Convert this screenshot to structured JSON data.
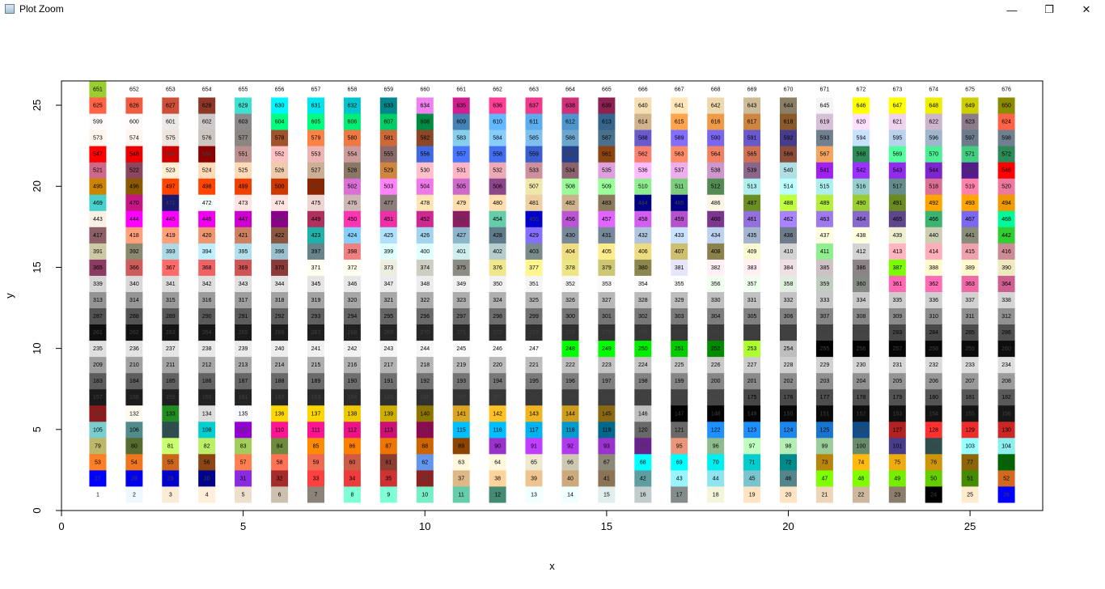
{
  "window": {
    "title": "Plot Zoom",
    "minimize_glyph": "—",
    "maximize_glyph": "❐",
    "close_glyph": "✕"
  },
  "chart_data": {
    "type": "scatter",
    "title": "",
    "xlabel": "x",
    "ylabel": "y",
    "xlim": [
      0,
      27
    ],
    "ylim": [
      0,
      26.5
    ],
    "x_ticks": [
      0,
      5,
      10,
      15,
      20,
      25
    ],
    "y_ticks": [
      0,
      5,
      10,
      15,
      20,
      25
    ],
    "grid": false,
    "marker": "square",
    "layout_rule": "point n is drawn at x = ((n-1) mod 26) + 1, y = floor((n-1)/26) + 1, filled with R colors()[n] and labelled with n",
    "labels": [
      1,
      2,
      3,
      4,
      5,
      6,
      7,
      8,
      9,
      10,
      11,
      12,
      13,
      14,
      15,
      16,
      17,
      18,
      19,
      20,
      21,
      22,
      23,
      24,
      25,
      26,
      27,
      28,
      29,
      30,
      31,
      32,
      33,
      34,
      35,
      36,
      37,
      38,
      39,
      40,
      41,
      42,
      43,
      44,
      45,
      46,
      47,
      48,
      49,
      50,
      51,
      52,
      53,
      54,
      55,
      56,
      57,
      58,
      59,
      60,
      61,
      62,
      63,
      64,
      65,
      66,
      67,
      68,
      69,
      70,
      71,
      72,
      73,
      74,
      75,
      76,
      77,
      78,
      79,
      80,
      81,
      82,
      83,
      84,
      85,
      86,
      87,
      88,
      89,
      90,
      91,
      92,
      93,
      94,
      95,
      96,
      97,
      98,
      99,
      100,
      101,
      102,
      103,
      104,
      105,
      106,
      107,
      108,
      109,
      110,
      111,
      112,
      113,
      114,
      115,
      116,
      117,
      118,
      119,
      120,
      121,
      122,
      123,
      124,
      125,
      126,
      127,
      128,
      129,
      130,
      131,
      132,
      133,
      134,
      135,
      136,
      137,
      138,
      139,
      140,
      141,
      142,
      143,
      144,
      145,
      146,
      147,
      148,
      149,
      150,
      151,
      152,
      153,
      154,
      155,
      156,
      157,
      158,
      159,
      160,
      161,
      162,
      163,
      164,
      165,
      166,
      167,
      168,
      169,
      170,
      171,
      172,
      173,
      174,
      175,
      176,
      177,
      178,
      179,
      180,
      181,
      182,
      183,
      184,
      185,
      186,
      187,
      188,
      189,
      190,
      191,
      192,
      193,
      194,
      195,
      196,
      197,
      198,
      199,
      200,
      201,
      202,
      203,
      204,
      205,
      206,
      207,
      208,
      209,
      210,
      211,
      212,
      213,
      214,
      215,
      216,
      217,
      218,
      219,
      220,
      221,
      222,
      223,
      224,
      225,
      226,
      227,
      228,
      229,
      230,
      231,
      232,
      233,
      234,
      235,
      236,
      237,
      238,
      239,
      240,
      241,
      242,
      243,
      244,
      245,
      246,
      247,
      248,
      249,
      250,
      251,
      252,
      253,
      254,
      255,
      256,
      257,
      258,
      259,
      260,
      261,
      262,
      263,
      264,
      265,
      266,
      267,
      268,
      269,
      270,
      271,
      272,
      273,
      274,
      275,
      276,
      277,
      278,
      279,
      280,
      281,
      282,
      283,
      284,
      285,
      286,
      287,
      288,
      289,
      290,
      291,
      292,
      293,
      294,
      295,
      296,
      297,
      298,
      299,
      300,
      301,
      302,
      303,
      304,
      305,
      306,
      307,
      308,
      309,
      310,
      311,
      312,
      313,
      314,
      315,
      316,
      317,
      318,
      319,
      320,
      321,
      322,
      323,
      324,
      325,
      326,
      327,
      328,
      329,
      330,
      331,
      332,
      333,
      334,
      335,
      336,
      337,
      338,
      339,
      340,
      341,
      342,
      343,
      344,
      345,
      346,
      347,
      348,
      349,
      350,
      351,
      352,
      353,
      354,
      355,
      356,
      357,
      358,
      359,
      360,
      361,
      362,
      363,
      364,
      365,
      366,
      367,
      368,
      369,
      370,
      371,
      372,
      373,
      374,
      375,
      376,
      377,
      378,
      379,
      380,
      381,
      382,
      383,
      384,
      385,
      386,
      387,
      388,
      389,
      390,
      391,
      392,
      393,
      394,
      395,
      396,
      397,
      398,
      399,
      400,
      401,
      402,
      403,
      404,
      405,
      406,
      407,
      408,
      409,
      410,
      411,
      412,
      413,
      414,
      415,
      416,
      417,
      418,
      419,
      420,
      421,
      422,
      423,
      424,
      425,
      426,
      427,
      428,
      429,
      430,
      431,
      432,
      433,
      434,
      435,
      436,
      437,
      438,
      439,
      440,
      441,
      442,
      443,
      444,
      445,
      446,
      447,
      448,
      449,
      450,
      451,
      452,
      453,
      454,
      455,
      456,
      457,
      458,
      459,
      460,
      461,
      462,
      463,
      464,
      465,
      466,
      467,
      468,
      469,
      470,
      471,
      472,
      473,
      474,
      475,
      476,
      477,
      478,
      479,
      480,
      481,
      482,
      483,
      484,
      485,
      486,
      487,
      488,
      489,
      490,
      491,
      492,
      493,
      494,
      495,
      496,
      497,
      498,
      499,
      500,
      501,
      502,
      503,
      504,
      505,
      506,
      507,
      508,
      509,
      510,
      511,
      512,
      513,
      514,
      515,
      516,
      517,
      518,
      519,
      520,
      521,
      522,
      523,
      524,
      525,
      526,
      527,
      528,
      529,
      530,
      531,
      532,
      533,
      534,
      535,
      536,
      537,
      538,
      539,
      540,
      541,
      542,
      543,
      544,
      545,
      546,
      547,
      548,
      549,
      550,
      551,
      552,
      553,
      554,
      555,
      556,
      557,
      558,
      559,
      560,
      561,
      562,
      563,
      564,
      565,
      566,
      567,
      568,
      569,
      570,
      571,
      572,
      573,
      574,
      575,
      576,
      577,
      578,
      579,
      580,
      581,
      582,
      583,
      584,
      585,
      586,
      587,
      588,
      589,
      590,
      591,
      592,
      593,
      594,
      595,
      596,
      597,
      598,
      599,
      600,
      601,
      602,
      603,
      604,
      605,
      606,
      607,
      608,
      609,
      610,
      611,
      612,
      613,
      614,
      615,
      616,
      617,
      618,
      619,
      620,
      621,
      622,
      623,
      624,
      625,
      626,
      627,
      628,
      629,
      630,
      631,
      632,
      633,
      634,
      635,
      636,
      637,
      638,
      639,
      640,
      641,
      642,
      643,
      644,
      645,
      646,
      647,
      648,
      649,
      650,
      651,
      652,
      653,
      654,
      655,
      656,
      657,
      658,
      659,
      660,
      661,
      662,
      663,
      664,
      665,
      666,
      667,
      668,
      669,
      670,
      671,
      672,
      673,
      674,
      675,
      676
    ],
    "colors": [
      "#FFFFFF",
      "#F0F8FF",
      "#FAEBD7",
      "#FFEFDB",
      "#EEDFCC",
      "#CDC0B0",
      "#8B8378",
      "#7FFFD4",
      "#7FFFD4",
      "#76EEC6",
      "#66CDAA",
      "#458B74",
      "#F0FFFF",
      "#F0FFFF",
      "#E0EEEE",
      "#C1CDCD",
      "#838B8B",
      "#F5F5DC",
      "#FFE4C4",
      "#FFE4C4",
      "#EED5B7",
      "#CDB79E",
      "#8B7D6B",
      "#000000",
      "#FFEBCD",
      "#0000FF",
      "#0000FF",
      "#0000EE",
      "#0000CD",
      "#00008B",
      "#8A2BE2",
      "#A52A2A",
      "#FF4040",
      "#EE3B3B",
      "#CD3333",
      "#8B2323",
      "#DEB887",
      "#FFD39B",
      "#EEC591",
      "#CDAA7D",
      "#8B7355",
      "#5F9EA0",
      "#98F5FF",
      "#8EE5EE",
      "#7AC5CD",
      "#53868B",
      "#7FFF00",
      "#7FFF00",
      "#76EE00",
      "#66CD00",
      "#458B00",
      "#D2691E",
      "#FF7F24",
      "#EE7621",
      "#CD661D",
      "#8B4513",
      "#FF7F50",
      "#FF7256",
      "#EE6A50",
      "#CD5B45",
      "#8B3E2F",
      "#6495ED",
      "#FFF8DC",
      "#FFF8DC",
      "#EEE8CD",
      "#CDC8B1",
      "#8B8878",
      "#00FFFF",
      "#00FFFF",
      "#00EEEE",
      "#00CDCD",
      "#008B8B",
      "#B8860B",
      "#FFB90F",
      "#EEAD0E",
      "#CD950C",
      "#8B6508",
      "#006400",
      "#BDB76B",
      "#556B2F",
      "#CAFF70",
      "#BCEE68",
      "#A2CD5A",
      "#6E8B3D",
      "#FF8C00",
      "#FF7F00",
      "#EE7600",
      "#CD6600",
      "#8B4500",
      "#9932CC",
      "#BF3EFF",
      "#B23AEE",
      "#9A32CD",
      "#68228B",
      "#E9967A",
      "#8FBC8F",
      "#C1FFC1",
      "#B4EEB4",
      "#9BCD9B",
      "#698B69",
      "#483D8B",
      "#2F4F4F",
      "#97FFFF",
      "#8DEEEE",
      "#79CDCD",
      "#528B8B",
      "#2F4F4F",
      "#00CED1",
      "#9400D3",
      "#FF1493",
      "#FF1493",
      "#EE1289",
      "#CD1076",
      "#8B0A50",
      "#00BFFF",
      "#00BFFF",
      "#00B2EE",
      "#009ACD",
      "#00688B",
      "#696969",
      "#696969",
      "#1E90FF",
      "#1E90FF",
      "#1C86EE",
      "#1874CD",
      "#104E8B",
      "#B22222",
      "#FF3030",
      "#EE2C2C",
      "#CD2626",
      "#8B1A1A",
      "#FFFAF0",
      "#228B22",
      "#DCDCDC",
      "#F8F8FF",
      "#FFD700",
      "#FFD700",
      "#EEC900",
      "#CDAD00",
      "#8B7500",
      "#DAA520",
      "#FFC125",
      "#EEB422",
      "#CD9B1D",
      "#8B6914",
      "#BEBEBE",
      "#000000",
      "#030303",
      "#050505",
      "#080808",
      "#0A0A0A",
      "#0D0D0D",
      "#0F0F0F",
      "#121212",
      "#141414",
      "#171717",
      "#1A1A1A",
      "#1C1C1C",
      "#1F1F1F",
      "#212121",
      "#242424",
      "#262626",
      "#292929",
      "#2B2B2B",
      "#2E2E2E",
      "#303030",
      "#333333",
      "#363636",
      "#383838",
      "#3B3B3B",
      "#3D3D3D",
      "#404040",
      "#424242",
      "#454545",
      "#474747",
      "#4A4A4A",
      "#4D4D4D",
      "#4F4F4F",
      "#525252",
      "#545454",
      "#575757",
      "#595959",
      "#5C5C5C",
      "#5E5E5E",
      "#616161",
      "#636363",
      "#666666",
      "#696969",
      "#6B6B6B",
      "#6E6E6E",
      "#707070",
      "#737373",
      "#757575",
      "#787878",
      "#7A7A7A",
      "#7D7D7D",
      "#7F7F7F",
      "#828282",
      "#858585",
      "#878787",
      "#8A8A8A",
      "#8C8C8C",
      "#8F8F8F",
      "#919191",
      "#949494",
      "#969696",
      "#999999",
      "#9C9C9C",
      "#9E9E9E",
      "#A1A1A1",
      "#A3A3A3",
      "#A6A6A6",
      "#A8A8A8",
      "#ABABAB",
      "#ADADAD",
      "#B0B0B0",
      "#B3B3B3",
      "#B5B5B5",
      "#B8B8B8",
      "#BABABA",
      "#BDBDBD",
      "#BFBFBF",
      "#C2C2C2",
      "#C4C4C4",
      "#C7C7C7",
      "#C9C9C9",
      "#CCCCCC",
      "#CFCFCF",
      "#D1D1D1",
      "#D4D4D4",
      "#D6D6D6",
      "#D9D9D9",
      "#DBDBDB",
      "#DEDEDE",
      "#E0E0E0",
      "#E3E3E3",
      "#E5E5E5",
      "#E8E8E8",
      "#EBEBEB",
      "#EDEDED",
      "#F0F0F0",
      "#F2F2F2",
      "#F5F5F5",
      "#F7F7F7",
      "#FAFAFA",
      "#FCFCFC",
      "#FFFFFF",
      "#00FF00",
      "#00FF00",
      "#00EE00",
      "#00CD00",
      "#008B00",
      "#ADFF2F",
      "#BEBEBE",
      "#000000",
      "#030303",
      "#050505",
      "#080808",
      "#0A0A0A",
      "#0D0D0D",
      "#0F0F0F",
      "#121212",
      "#141414",
      "#171717",
      "#1A1A1A",
      "#1C1C1C",
      "#1F1F1F",
      "#212121",
      "#242424",
      "#262626",
      "#292929",
      "#2B2B2B",
      "#2E2E2E",
      "#303030",
      "#333333",
      "#363636",
      "#383838",
      "#3B3B3B",
      "#3D3D3D",
      "#404040",
      "#424242",
      "#454545",
      "#474747",
      "#4A4A4A",
      "#4D4D4D",
      "#4F4F4F",
      "#525252",
      "#545454",
      "#575757",
      "#595959",
      "#5C5C5C",
      "#5E5E5E",
      "#616161",
      "#636363",
      "#666666",
      "#696969",
      "#6B6B6B",
      "#6E6E6E",
      "#707070",
      "#737373",
      "#757575",
      "#787878",
      "#7A7A7A",
      "#7D7D7D",
      "#7F7F7F",
      "#828282",
      "#858585",
      "#878787",
      "#8A8A8A",
      "#8C8C8C",
      "#8F8F8F",
      "#919191",
      "#949494",
      "#969696",
      "#999999",
      "#9C9C9C",
      "#9E9E9E",
      "#A1A1A1",
      "#A3A3A3",
      "#A6A6A6",
      "#A8A8A8",
      "#ABABAB",
      "#ADADAD",
      "#B0B0B0",
      "#B3B3B3",
      "#B5B5B5",
      "#B8B8B8",
      "#BABABA",
      "#BDBDBD",
      "#BFBFBF",
      "#C2C2C2",
      "#C4C4C4",
      "#C7C7C7",
      "#C9C9C9",
      "#CCCCCC",
      "#CFCFCF",
      "#D1D1D1",
      "#D4D4D4",
      "#D6D6D6",
      "#D9D9D9",
      "#DBDBDB",
      "#DEDEDE",
      "#E0E0E0",
      "#E3E3E3",
      "#E5E5E5",
      "#E8E8E8",
      "#EBEBEB",
      "#EDEDED",
      "#F0F0F0",
      "#F2F2F2",
      "#F5F5F5",
      "#F7F7F7",
      "#FAFAFA",
      "#FCFCFC",
      "#FFFFFF",
      "#F0FFF0",
      "#F0FFF0",
      "#E0EEE0",
      "#C1CDC1",
      "#838B83",
      "#FF69B4",
      "#FF6EB4",
      "#EE6AA7",
      "#CD6090",
      "#8B3A62",
      "#CD5C5C",
      "#FF6A6A",
      "#EE6363",
      "#CD5555",
      "#8B3A3A",
      "#FFFFF0",
      "#FFFFF0",
      "#EEEEE0",
      "#CDCDC1",
      "#8B8B83",
      "#F0E68C",
      "#FFF68F",
      "#EEE685",
      "#CDC673",
      "#8B864E",
      "#E6E6FA",
      "#FFF0F5",
      "#FFF0F5",
      "#EEE0E5",
      "#CDC1C5",
      "#8B8386",
      "#7CFC00",
      "#FFFACD",
      "#FFFACD",
      "#EEE9BF",
      "#CDC9A5",
      "#8B8970",
      "#ADD8E6",
      "#BFEFFF",
      "#B2DFEE",
      "#9AC0CD",
      "#68838B",
      "#F08080",
      "#E0FFFF",
      "#E0FFFF",
      "#D1EEEE",
      "#B4CDCD",
      "#7A8B8B",
      "#EEDD82",
      "#FFEC8B",
      "#EEDC82",
      "#CDBE70",
      "#8B814C",
      "#FAFAD2",
      "#D3D3D3",
      "#90EE90",
      "#D3D3D3",
      "#FFB6C1",
      "#FFAEB9",
      "#EEA2AD",
      "#CD8C95",
      "#8B5F65",
      "#FFA07A",
      "#FFA07A",
      "#EE9572",
      "#CD8162",
      "#8B5742",
      "#20B2AA",
      "#87CEFA",
      "#B0E2FF",
      "#A4D3EE",
      "#8DB6CD",
      "#607B8B",
      "#8470FF",
      "#778899",
      "#778899",
      "#B0C4DE",
      "#CAE1FF",
      "#BCD2EE",
      "#A2B5CD",
      "#6E7B8B",
      "#FFFFE0",
      "#FFFFE0",
      "#EEEED1",
      "#CDCDB4",
      "#8B8B7A",
      "#32CD32",
      "#FAF0E6",
      "#FF00FF",
      "#FF00FF",
      "#EE00EE",
      "#CD00CD",
      "#8B008B",
      "#B03060",
      "#FF34B3",
      "#EE30A7",
      "#CD2990",
      "#8B1C62",
      "#66CDAA",
      "#0000CD",
      "#BA55D3",
      "#E066FF",
      "#D15FEE",
      "#B452CD",
      "#7A378B",
      "#9370DB",
      "#AB82FF",
      "#9F79EE",
      "#8968CD",
      "#5D478B",
      "#3CB371",
      "#7B68EE",
      "#00FA9A",
      "#48D1CC",
      "#C71585",
      "#191970",
      "#F5FFFA",
      "#FFE4E1",
      "#FFE4E1",
      "#EED5D2",
      "#CDB7B5",
      "#8B7D7B",
      "#FFE4B5",
      "#FFDEAD",
      "#FFDEAD",
      "#EECFA1",
      "#CDB38B",
      "#8B795E",
      "#000080",
      "#000080",
      "#FDF5E6",
      "#6B8E23",
      "#C0FF3E",
      "#B3EE3A",
      "#9ACD32",
      "#698B22",
      "#FFA500",
      "#FFA500",
      "#EE9A00",
      "#CD8500",
      "#8B5A00",
      "#FF4500",
      "#FF4500",
      "#EE4000",
      "#CD3700",
      "#8B2500",
      "#DA70D6",
      "#FF83FA",
      "#EE7AE9",
      "#CD69C9",
      "#8B4789",
      "#EEE8AA",
      "#98FB98",
      "#9AFF9A",
      "#90EE90",
      "#7CCD7C",
      "#548B54",
      "#AFEEEE",
      "#BBFFFF",
      "#AEEEEE",
      "#96CDCD",
      "#668B8B",
      "#DB7093",
      "#FF82AB",
      "#EE799F",
      "#CD6889",
      "#8B475D",
      "#FFEFD5",
      "#FFDAB9",
      "#FFDAB9",
      "#EECBAD",
      "#CDAF95",
      "#8B7765",
      "#CD853F",
      "#FFC0CB",
      "#FFB5C5",
      "#EEA9B8",
      "#CD919E",
      "#8B636C",
      "#DDA0DD",
      "#FFBBFF",
      "#EEAEEE",
      "#CD96CD",
      "#8B668B",
      "#B0E0E6",
      "#A020F0",
      "#9B30FF",
      "#912CEE",
      "#7D26CD",
      "#551A8B",
      "#FF0000",
      "#FF0000",
      "#EE0000",
      "#CD0000",
      "#8B0000",
      "#BC8F8F",
      "#FFC1C1",
      "#EEB4B4",
      "#CD9B9B",
      "#8B6969",
      "#4169E1",
      "#4876FF",
      "#436EEE",
      "#3A5FCD",
      "#27408B",
      "#8B4513",
      "#FA8072",
      "#FF8C69",
      "#EE8262",
      "#CD7054",
      "#8B4C39",
      "#F4A460",
      "#2E8B57",
      "#54FF9F",
      "#4EEE94",
      "#43CD80",
      "#2E8B57",
      "#FFF5EE",
      "#FFF5EE",
      "#EEE5DE",
      "#CDC5BF",
      "#8B8682",
      "#A0522D",
      "#FF8247",
      "#EE7942",
      "#CD6839",
      "#8B4726",
      "#87CEEB",
      "#87CEFF",
      "#7EC0EE",
      "#6CA6CD",
      "#4A708B",
      "#6A5ACD",
      "#836FFF",
      "#7A67EE",
      "#6959CD",
      "#473C8B",
      "#708090",
      "#C6E2FF",
      "#B9D3EE",
      "#9FB6CD",
      "#6C7B8B",
      "#708090",
      "#FFFAFA",
      "#FFFAFA",
      "#EEE9E9",
      "#CDC9C9",
      "#8B8989",
      "#00FF7F",
      "#00FF7F",
      "#00EE76",
      "#00CD66",
      "#008B45",
      "#4682B4",
      "#63B8FF",
      "#5CACEE",
      "#4F94CD",
      "#36648B",
      "#D2B48C",
      "#FFA54F",
      "#EE9A49",
      "#CD853F",
      "#8B5A2B",
      "#D8BFD8",
      "#FFE1FF",
      "#EED2EE",
      "#CDB5CD",
      "#8B7B8B",
      "#FF6347",
      "#FF6347",
      "#EE5C42",
      "#CD4F39",
      "#8B3626",
      "#40E0D0",
      "#00F5FF",
      "#00E5EE",
      "#00C5CD",
      "#00868B",
      "#EE82EE",
      "#D02090",
      "#FF3E96",
      "#EE3A8C",
      "#CD3278",
      "#8B2252",
      "#F5DEB3",
      "#FFE7BA",
      "#EED8AE",
      "#CDBA96",
      "#8B7E66",
      "#F5F5F5",
      "#FFFF00",
      "#FFFF00",
      "#EEEE00",
      "#CDCD00",
      "#8B8B00",
      "#9ACD32",
      "#FFFFFF",
      "#FFFFFF",
      "#FFFFFF",
      "#FFFFFF",
      "#FFFFFF",
      "#FFFFFF",
      "#FFFFFF",
      "#FFFFFF",
      "#FFFFFF",
      "#FFFFFF",
      "#FFFFFF",
      "#FFFFFF",
      "#FFFFFF",
      "#FFFFFF",
      "#FFFFFF",
      "#FFFFFF",
      "#FFFFFF",
      "#FFFFFF",
      "#FFFFFF"
    ]
  }
}
